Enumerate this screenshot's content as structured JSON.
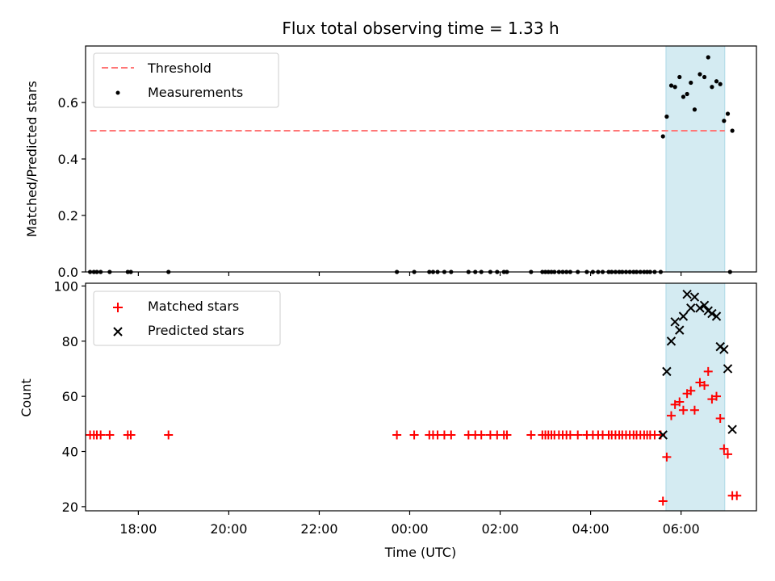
{
  "chart_data": {
    "title": "Flux total observing time = 1.33 h",
    "xlabel": "Time (UTC)",
    "x_ticks": [
      "18:00",
      "20:00",
      "22:00",
      "00:00",
      "02:00",
      "04:00",
      "06:00"
    ],
    "x_range": [
      "16:50",
      "07:40"
    ],
    "highlight_span": [
      "05:40",
      "06:58"
    ],
    "grid": false,
    "panels": [
      {
        "type": "scatter",
        "ylabel": "Matched/Predicted stars",
        "ylim": [
          0,
          0.8
        ],
        "y_ticks": [
          "0.0",
          "0.2",
          "0.4",
          "0.6"
        ],
        "legend": {
          "placement": "top-left",
          "entries": [
            {
              "label": "Threshold",
              "style": "dashed-line"
            },
            {
              "label": "Measurements",
              "style": "dot"
            }
          ]
        },
        "threshold": {
          "value": 0.5,
          "x_range": [
            "16:56",
            "06:58"
          ],
          "color": "#ff7777"
        },
        "series": [
          {
            "name": "Measurements",
            "color": "#000000",
            "points": [
              [
                "16:56",
                0
              ],
              [
                "17:01",
                0
              ],
              [
                "17:05",
                0
              ],
              [
                "17:10",
                0
              ],
              [
                "17:22",
                0
              ],
              [
                "17:46",
                0
              ],
              [
                "17:50",
                0
              ],
              [
                "18:40",
                0
              ],
              [
                "23:43",
                0
              ],
              [
                "00:06",
                0
              ],
              [
                "00:26",
                0
              ],
              [
                "00:31",
                0
              ],
              [
                "00:37",
                0
              ],
              [
                "00:46",
                0
              ],
              [
                "00:55",
                0
              ],
              [
                "01:18",
                0
              ],
              [
                "01:27",
                0
              ],
              [
                "01:35",
                0
              ],
              [
                "01:47",
                0
              ],
              [
                "01:56",
                0
              ],
              [
                "02:05",
                0
              ],
              [
                "02:09",
                0
              ],
              [
                "02:41",
                0
              ],
              [
                "02:56",
                0
              ],
              [
                "03:00",
                0
              ],
              [
                "03:04",
                0
              ],
              [
                "03:08",
                0
              ],
              [
                "03:12",
                0
              ],
              [
                "03:18",
                0
              ],
              [
                "03:23",
                0
              ],
              [
                "03:28",
                0
              ],
              [
                "03:33",
                0
              ],
              [
                "03:43",
                0
              ],
              [
                "03:55",
                0
              ],
              [
                "04:03",
                0
              ],
              [
                "04:10",
                0
              ],
              [
                "04:16",
                0
              ],
              [
                "04:24",
                0
              ],
              [
                "04:28",
                0
              ],
              [
                "04:33",
                0
              ],
              [
                "04:38",
                0
              ],
              [
                "04:42",
                0
              ],
              [
                "04:47",
                0
              ],
              [
                "04:52",
                0
              ],
              [
                "04:57",
                0
              ],
              [
                "05:01",
                0
              ],
              [
                "05:06",
                0
              ],
              [
                "05:11",
                0
              ],
              [
                "05:15",
                0
              ],
              [
                "05:19",
                0
              ],
              [
                "05:25",
                0
              ],
              [
                "05:33",
                0
              ],
              [
                "07:05",
                0
              ],
              [
                "05:36",
                0.48
              ],
              [
                "05:41",
                0.55
              ],
              [
                "05:47",
                0.66
              ],
              [
                "05:52",
                0.655
              ],
              [
                "05:58",
                0.69
              ],
              [
                "06:03",
                0.62
              ],
              [
                "06:08",
                0.63
              ],
              [
                "06:13",
                0.67
              ],
              [
                "06:18",
                0.575
              ],
              [
                "06:25",
                0.7
              ],
              [
                "06:31",
                0.69
              ],
              [
                "06:36",
                0.76
              ],
              [
                "06:41",
                0.655
              ],
              [
                "06:47",
                0.675
              ],
              [
                "06:52",
                0.665
              ],
              [
                "06:57",
                0.535
              ],
              [
                "07:02",
                0.56
              ],
              [
                "07:08",
                0.5
              ]
            ]
          }
        ]
      },
      {
        "type": "scatter",
        "ylabel": "Count",
        "ylim": [
          18.5,
          101
        ],
        "y_ticks": [
          "20",
          "40",
          "60",
          "80",
          "100"
        ],
        "legend": {
          "placement": "top-left",
          "entries": [
            {
              "label": "Matched stars",
              "style": "plus"
            },
            {
              "label": "Predicted stars",
              "style": "cross"
            }
          ]
        },
        "series": [
          {
            "name": "Matched stars",
            "color": "#ff0000",
            "marker": "+",
            "points": [
              [
                "16:56",
                46
              ],
              [
                "17:01",
                46
              ],
              [
                "17:05",
                46
              ],
              [
                "17:10",
                46
              ],
              [
                "17:22",
                46
              ],
              [
                "17:46",
                46
              ],
              [
                "17:50",
                46
              ],
              [
                "18:40",
                46
              ],
              [
                "23:43",
                46
              ],
              [
                "00:06",
                46
              ],
              [
                "00:26",
                46
              ],
              [
                "00:31",
                46
              ],
              [
                "00:37",
                46
              ],
              [
                "00:46",
                46
              ],
              [
                "00:55",
                46
              ],
              [
                "01:18",
                46
              ],
              [
                "01:27",
                46
              ],
              [
                "01:35",
                46
              ],
              [
                "01:47",
                46
              ],
              [
                "01:56",
                46
              ],
              [
                "02:05",
                46
              ],
              [
                "02:09",
                46
              ],
              [
                "02:41",
                46
              ],
              [
                "02:56",
                46
              ],
              [
                "03:00",
                46
              ],
              [
                "03:04",
                46
              ],
              [
                "03:08",
                46
              ],
              [
                "03:12",
                46
              ],
              [
                "03:18",
                46
              ],
              [
                "03:23",
                46
              ],
              [
                "03:28",
                46
              ],
              [
                "03:33",
                46
              ],
              [
                "03:43",
                46
              ],
              [
                "03:55",
                46
              ],
              [
                "04:03",
                46
              ],
              [
                "04:10",
                46
              ],
              [
                "04:16",
                46
              ],
              [
                "04:24",
                46
              ],
              [
                "04:28",
                46
              ],
              [
                "04:33",
                46
              ],
              [
                "04:38",
                46
              ],
              [
                "04:42",
                46
              ],
              [
                "04:47",
                46
              ],
              [
                "04:52",
                46
              ],
              [
                "04:57",
                46
              ],
              [
                "05:01",
                46
              ],
              [
                "05:06",
                46
              ],
              [
                "05:11",
                46
              ],
              [
                "05:15",
                46
              ],
              [
                "05:19",
                46
              ],
              [
                "05:25",
                46
              ],
              [
                "05:33",
                46
              ],
              [
                "05:36",
                22
              ],
              [
                "05:41",
                38
              ],
              [
                "05:47",
                53
              ],
              [
                "05:52",
                57
              ],
              [
                "05:58",
                58
              ],
              [
                "06:03",
                55
              ],
              [
                "06:08",
                61
              ],
              [
                "06:13",
                62
              ],
              [
                "06:18",
                55
              ],
              [
                "06:25",
                65
              ],
              [
                "06:31",
                64
              ],
              [
                "06:36",
                69
              ],
              [
                "06:41",
                59
              ],
              [
                "06:47",
                60
              ],
              [
                "06:52",
                52
              ],
              [
                "06:57",
                41
              ],
              [
                "07:02",
                39
              ],
              [
                "07:08",
                24
              ],
              [
                "07:14",
                24
              ]
            ]
          },
          {
            "name": "Predicted stars",
            "color": "#000000",
            "marker": "x",
            "points": [
              [
                "05:36",
                46
              ],
              [
                "05:41",
                69
              ],
              [
                "05:47",
                80
              ],
              [
                "05:52",
                87
              ],
              [
                "05:58",
                84
              ],
              [
                "06:03",
                89
              ],
              [
                "06:08",
                97
              ],
              [
                "06:13",
                92
              ],
              [
                "06:18",
                96
              ],
              [
                "06:25",
                92
              ],
              [
                "06:31",
                93
              ],
              [
                "06:36",
                91
              ],
              [
                "06:41",
                90
              ],
              [
                "06:47",
                89
              ],
              [
                "06:52",
                78
              ],
              [
                "06:57",
                77
              ],
              [
                "07:02",
                70
              ],
              [
                "07:08",
                48
              ]
            ]
          }
        ]
      }
    ]
  }
}
